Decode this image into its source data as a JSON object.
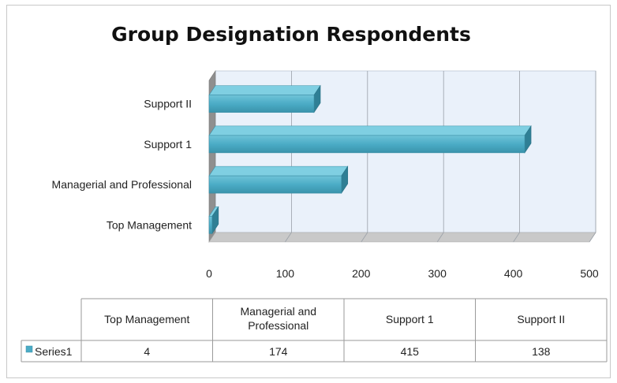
{
  "chart_data": {
    "type": "bar",
    "orientation": "horizontal",
    "title": "Group Designation Respondents",
    "categories": [
      "Top Management",
      "Managerial and Professional",
      "Support 1",
      "Support  II"
    ],
    "series": [
      {
        "name": "Series1",
        "values": [
          4,
          174,
          415,
          138
        ],
        "color": "#4bacc6"
      }
    ],
    "xlim": [
      0,
      500
    ],
    "xticks": [
      0,
      100,
      200,
      300,
      400,
      500
    ],
    "xlabel": "",
    "ylabel": "",
    "grid": true,
    "legend": "data-table-left",
    "data_table": {
      "headers": [
        "Top Management",
        "Managerial and Professional",
        "Support 1",
        "Support  II"
      ],
      "row_label": "Series1",
      "values": [
        "4",
        "174",
        "415",
        "138"
      ]
    }
  }
}
